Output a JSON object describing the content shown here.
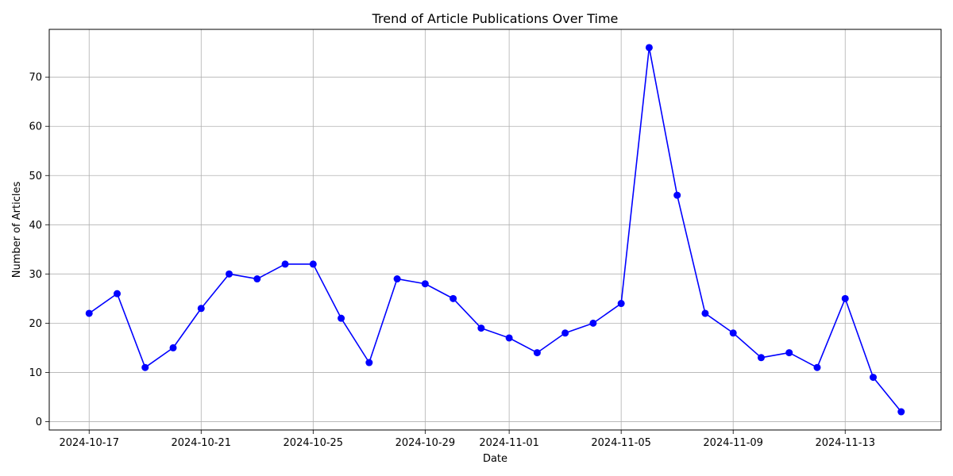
{
  "chart_data": {
    "type": "line",
    "title": "Trend of Article Publications Over Time",
    "xlabel": "Date",
    "ylabel": "Number of Articles",
    "x": [
      "2024-10-17",
      "2024-10-18",
      "2024-10-19",
      "2024-10-20",
      "2024-10-21",
      "2024-10-22",
      "2024-10-23",
      "2024-10-24",
      "2024-10-25",
      "2024-10-26",
      "2024-10-27",
      "2024-10-28",
      "2024-10-29",
      "2024-10-30",
      "2024-10-31",
      "2024-11-01",
      "2024-11-02",
      "2024-11-03",
      "2024-11-04",
      "2024-11-05",
      "2024-11-06",
      "2024-11-07",
      "2024-11-08",
      "2024-11-09",
      "2024-11-10",
      "2024-11-11",
      "2024-11-12",
      "2024-11-13",
      "2024-11-14",
      "2024-11-15"
    ],
    "series": [
      {
        "values": [
          22,
          26,
          11,
          15,
          23,
          30,
          29,
          32,
          32,
          21,
          12,
          29,
          28,
          25,
          19,
          17,
          14,
          18,
          20,
          24,
          76,
          46,
          22,
          18,
          13,
          14,
          11,
          25,
          9,
          2
        ],
        "color": "#0000ff",
        "marker": "circle"
      }
    ],
    "x_ticks": [
      "2024-10-17",
      "2024-10-21",
      "2024-10-25",
      "2024-10-29",
      "2024-11-01",
      "2024-11-05",
      "2024-11-09",
      "2024-11-13"
    ],
    "y_ticks": [
      0,
      10,
      20,
      30,
      40,
      50,
      60,
      70
    ],
    "xlim": [
      "2024-10-15T13:48",
      "2024-11-16T10:12"
    ],
    "ylim": [
      -1.7,
      79.7
    ],
    "grid": true,
    "legend": "none"
  }
}
